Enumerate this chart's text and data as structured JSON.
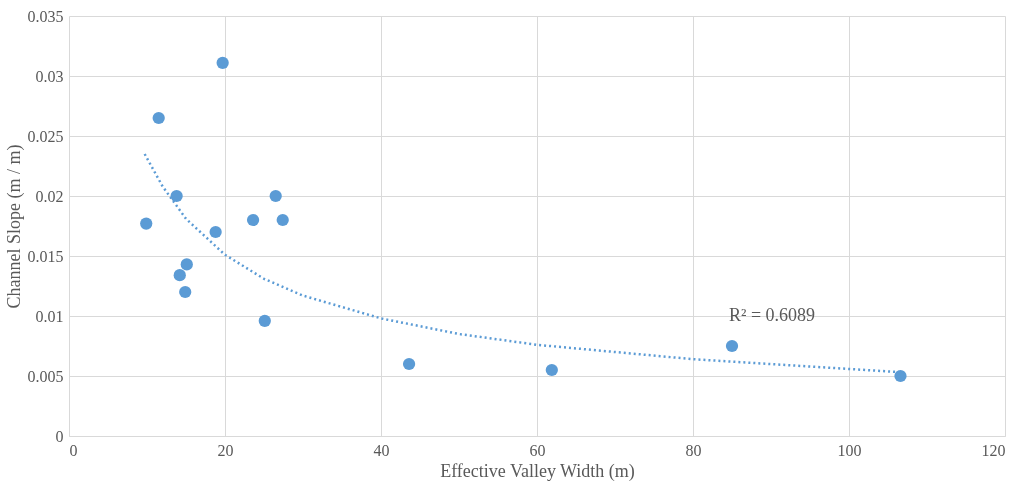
{
  "chart_data": {
    "type": "scatter",
    "xlabel": "Effective Valley Width (m)",
    "ylabel": "Channel Slope (m / m)",
    "xlim": [
      0,
      120
    ],
    "xticks": [
      0,
      20,
      40,
      60,
      80,
      100,
      120
    ],
    "ylim": [
      0,
      0.035
    ],
    "yticks": [
      0,
      0.005,
      0.01,
      0.015,
      0.02,
      0.025,
      0.03,
      0.035
    ],
    "grid": true,
    "annotations": [
      "R² = 0.6089"
    ],
    "series": [
      {
        "color": "#5b9bd5",
        "marker": "circle",
        "x": [
          9.9,
          11.5,
          13.8,
          14.2,
          14.9,
          15.1,
          18.8,
          19.7,
          23.6,
          25.1,
          26.5,
          27.4,
          43.6,
          61.9,
          85.0,
          106.6
        ],
        "values": [
          0.0177,
          0.0265,
          0.02,
          0.0134,
          0.012,
          0.0143,
          0.017,
          0.0311,
          0.018,
          0.0096,
          0.02,
          0.018,
          0.006,
          0.0055,
          0.0075,
          0.005
        ]
      },
      {
        "type": "line",
        "color": "#5b9bd5",
        "line_style": "dotted",
        "x": [
          9.7,
          12,
          15,
          20,
          25,
          30,
          40,
          50,
          60,
          80,
          107
        ],
        "values": [
          0.0235,
          0.0208,
          0.0181,
          0.0151,
          0.0131,
          0.0117,
          0.0098,
          0.0085,
          0.0076,
          0.0064,
          0.0053
        ]
      }
    ]
  }
}
